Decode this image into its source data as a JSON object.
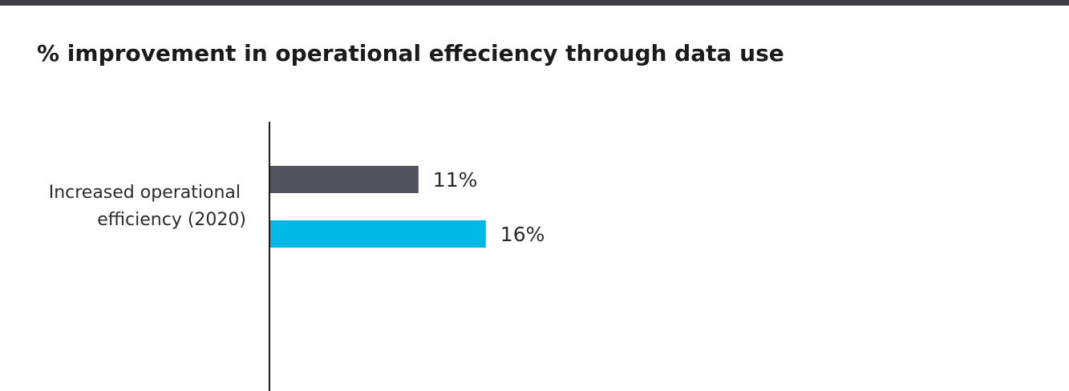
{
  "header": {
    "bar_color": "#3f3e48"
  },
  "chart_data": {
    "type": "bar",
    "orientation": "horizontal",
    "title": "% improvement in operational effeciency through data use",
    "categories": [
      "Increased operational efficiency (2020)"
    ],
    "category_lines": [
      "Increased operational",
      "efficiency (2020)"
    ],
    "series": [
      {
        "color": "#52525f",
        "values": [
          11
        ],
        "labels": [
          "11%"
        ]
      },
      {
        "color": "#00b8e6",
        "values": [
          16
        ],
        "labels": [
          "16%"
        ]
      }
    ],
    "xlim": [
      0,
      50
    ],
    "grid": false,
    "legend": "none",
    "axis_color": "#1a1a1a"
  }
}
